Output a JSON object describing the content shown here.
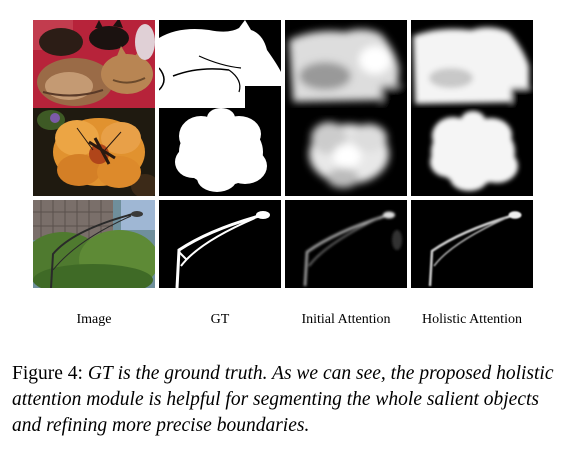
{
  "columns": [
    "Image",
    "GT",
    "Initial Attention",
    "Holistic Attention"
  ],
  "rows": [
    "cats",
    "flower",
    "streetlight"
  ],
  "caption": {
    "figure": "Figure 4:",
    "gt": "GT",
    "text": "is the ground truth. As we can see, the proposed holistic attention module is helpful for segmenting the whole salient objects and refining more precise boundaries."
  },
  "colors": {
    "mask_background": "#000000",
    "mask_foreground": "#ffffff"
  }
}
